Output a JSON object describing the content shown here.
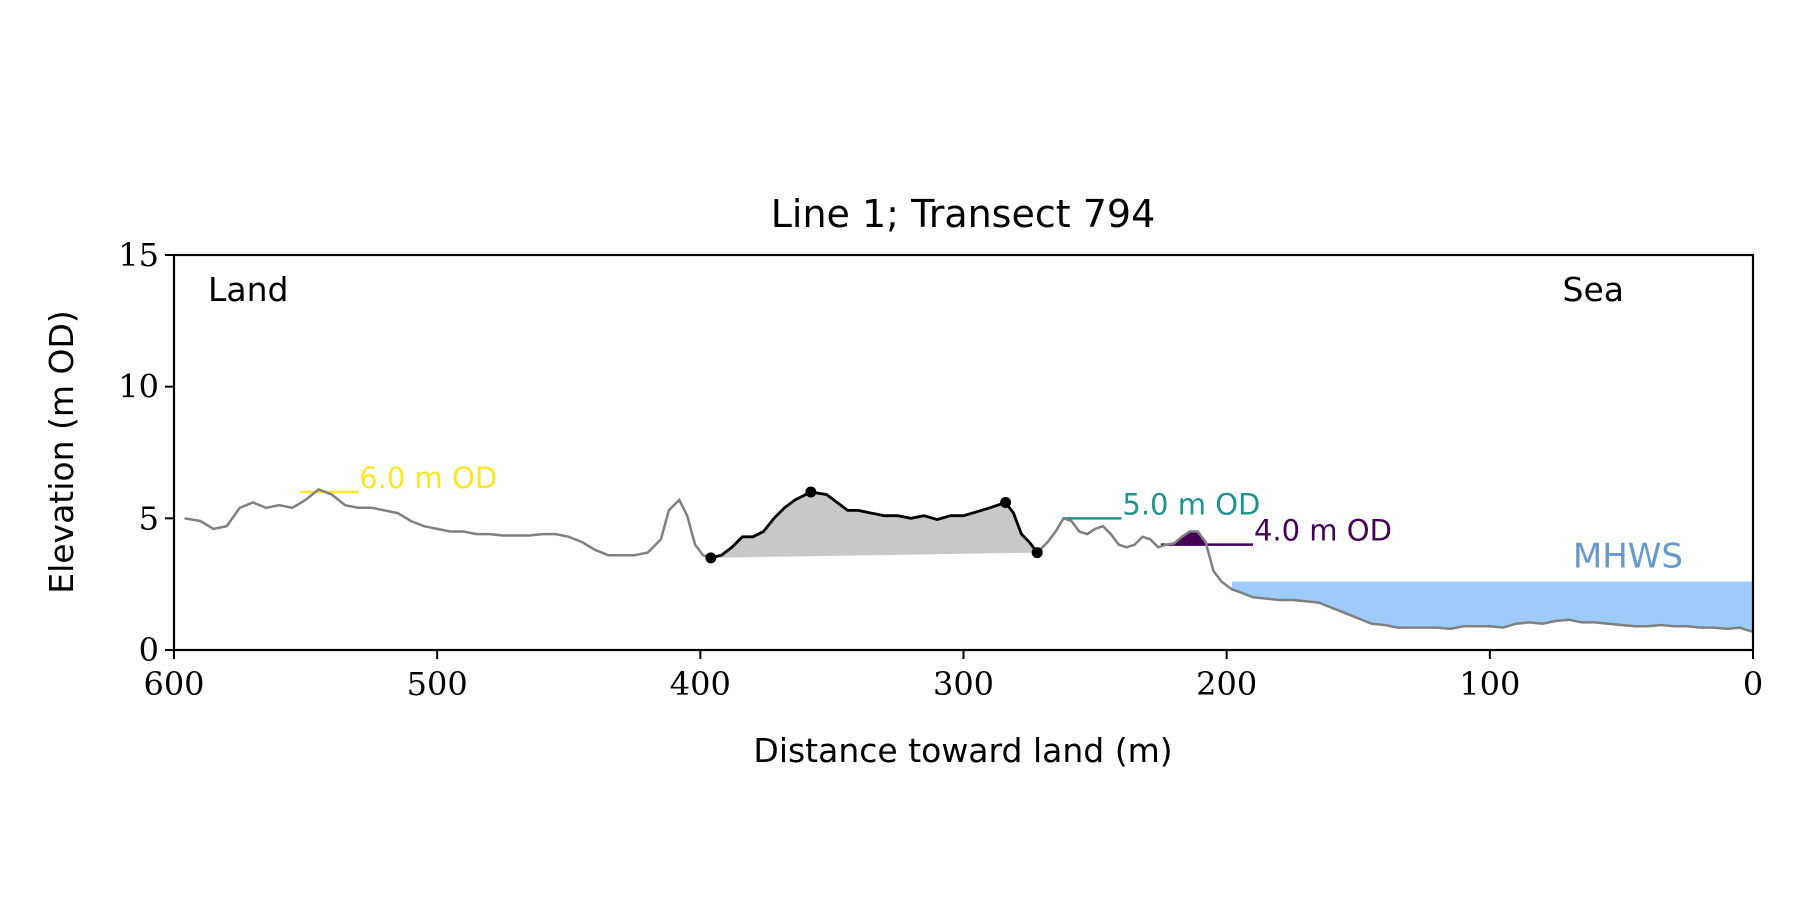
{
  "chart_data": {
    "type": "line",
    "title": "Line 1; Transect 794",
    "xlabel": "Distance toward land (m)",
    "ylabel": "Elevation (m OD)",
    "annotations": {
      "land": "Land",
      "sea": "Sea"
    },
    "xlim": [
      600,
      0
    ],
    "ylim": [
      0,
      15
    ],
    "xticks": [
      600,
      500,
      400,
      300,
      200,
      100,
      0
    ],
    "yticks": [
      0,
      5,
      10,
      15
    ],
    "profile": {
      "color": "#808080",
      "x": [
        596,
        590,
        585,
        580,
        575,
        570,
        565,
        560,
        555,
        550,
        545,
        540,
        535,
        530,
        525,
        520,
        515,
        510,
        505,
        500,
        495,
        490,
        485,
        480,
        475,
        470,
        465,
        460,
        455,
        450,
        445,
        440,
        435,
        430,
        425,
        420,
        415,
        412,
        408,
        405,
        402,
        399,
        396,
        392,
        388,
        384,
        380,
        376,
        372,
        368,
        364,
        360,
        358,
        352,
        348,
        344,
        340,
        335,
        330,
        325,
        320,
        315,
        310,
        305,
        300,
        295,
        290,
        284,
        281,
        278,
        275,
        272,
        268,
        265,
        262,
        259,
        256,
        253,
        250,
        247,
        244,
        241,
        238,
        235,
        232,
        229,
        226,
        223,
        220,
        217,
        214,
        211,
        208,
        205,
        202,
        198,
        195,
        190,
        185,
        180,
        175,
        170,
        165,
        160,
        155,
        150,
        145,
        140,
        135,
        130,
        125,
        120,
        115,
        110,
        105,
        100,
        95,
        90,
        85,
        80,
        75,
        70,
        65,
        60,
        55,
        50,
        45,
        40,
        35,
        30,
        25,
        20,
        15,
        10,
        5,
        2,
        0
      ],
      "y": [
        5.0,
        4.9,
        4.6,
        4.7,
        5.4,
        5.6,
        5.4,
        5.5,
        5.4,
        5.7,
        6.1,
        5.9,
        5.5,
        5.4,
        5.4,
        5.3,
        5.2,
        4.9,
        4.7,
        4.6,
        4.5,
        4.5,
        4.4,
        4.4,
        4.35,
        4.35,
        4.35,
        4.4,
        4.4,
        4.3,
        4.1,
        3.8,
        3.6,
        3.6,
        3.6,
        3.7,
        4.2,
        5.3,
        5.7,
        5.1,
        4.0,
        3.6,
        3.5,
        3.6,
        3.9,
        4.3,
        4.3,
        4.5,
        5.0,
        5.4,
        5.7,
        5.9,
        6.0,
        5.9,
        5.6,
        5.3,
        5.3,
        5.2,
        5.1,
        5.1,
        5.0,
        5.1,
        4.95,
        5.1,
        5.1,
        5.25,
        5.4,
        5.6,
        5.2,
        4.4,
        4.1,
        3.7,
        4.1,
        4.5,
        5.0,
        4.9,
        4.5,
        4.4,
        4.6,
        4.7,
        4.4,
        4.0,
        3.9,
        4.0,
        4.3,
        4.2,
        3.9,
        4.0,
        4.05,
        4.3,
        4.5,
        4.5,
        4.1,
        3.0,
        2.6,
        2.3,
        2.2,
        2.0,
        1.95,
        1.9,
        1.9,
        1.85,
        1.8,
        1.6,
        1.4,
        1.2,
        1.0,
        0.95,
        0.85,
        0.85,
        0.85,
        0.85,
        0.8,
        0.9,
        0.9,
        0.9,
        0.85,
        1.0,
        1.05,
        1.0,
        1.1,
        1.15,
        1.05,
        1.05,
        1.0,
        0.95,
        0.9,
        0.9,
        0.95,
        0.9,
        0.9,
        0.85,
        0.85,
        0.8,
        0.85,
        0.75,
        0.7
      ]
    },
    "dune": {
      "color": "#000000",
      "fill": "#c8c8c8",
      "x": [
        396,
        392,
        388,
        384,
        380,
        376,
        372,
        368,
        364,
        360,
        358,
        352,
        348,
        344,
        340,
        335,
        330,
        325,
        320,
        315,
        310,
        305,
        300,
        295,
        290,
        284,
        281,
        278,
        275,
        272
      ],
      "y": [
        3.5,
        3.6,
        3.9,
        4.3,
        4.3,
        4.5,
        5.0,
        5.4,
        5.7,
        5.9,
        6.0,
        5.9,
        5.6,
        5.3,
        5.3,
        5.2,
        5.1,
        5.1,
        5.0,
        5.1,
        4.95,
        5.1,
        5.1,
        5.25,
        5.4,
        5.6,
        5.2,
        4.4,
        4.1,
        3.7
      ]
    },
    "points": {
      "color": "#000000",
      "x": [
        396,
        358,
        284,
        272
      ],
      "y": [
        3.5,
        6.0,
        5.6,
        3.7
      ]
    },
    "levels": [
      {
        "label": "6.0 m OD",
        "value": 6.0,
        "x": [
          552,
          530
        ],
        "color": "#fde725",
        "fill": false
      },
      {
        "label": "5.0 m OD",
        "value": 5.0,
        "x": [
          262,
          240
        ],
        "color": "#21918c",
        "fill": false
      },
      {
        "label": "4.0 m OD",
        "value": 4.0,
        "x": [
          225,
          190
        ],
        "color": "#440154",
        "fill": true
      }
    ],
    "mhws": {
      "label": "MHWS",
      "value": 2.6,
      "x": [
        198,
        0
      ],
      "color": "#9ecbfa",
      "text_color": "#6699cc"
    }
  }
}
